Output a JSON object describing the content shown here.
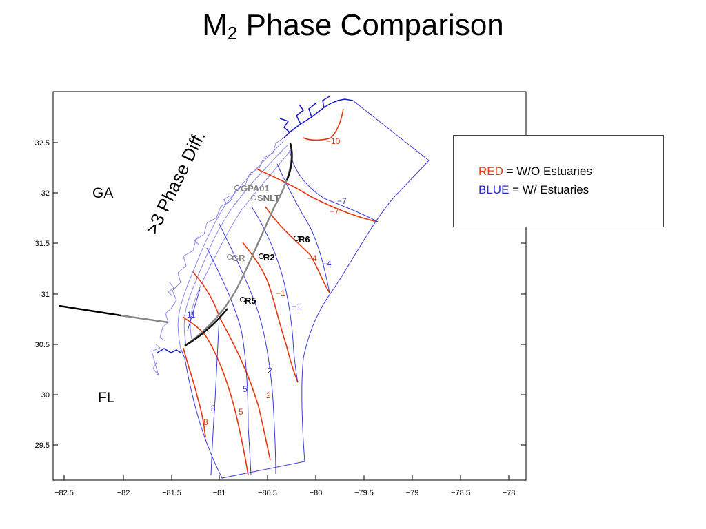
{
  "title": {
    "main": "M",
    "sub": "2",
    "rest": " Phase Comparison"
  },
  "legend": {
    "red_word": "RED",
    "red_rest": " = W/O Estuaries",
    "blue_word": "BLUE",
    "blue_rest": " = W/ Estuaries"
  },
  "states": {
    "ga": "GA",
    "fl": "FL"
  },
  "annotation": ">3 Phase Diff.",
  "axes": {
    "x_ticks": [
      "−82.5",
      "−82",
      "−81.5",
      "−81",
      "−80.5",
      "−80",
      "−79.5",
      "−79",
      "−78.5",
      "−78"
    ],
    "y_ticks": [
      "29.5",
      "30",
      "30.5",
      "31",
      "31.5",
      "32",
      "32.5"
    ]
  },
  "stations": [
    {
      "label": "GPA01",
      "style": "gray"
    },
    {
      "label": "SNLT",
      "style": "gray"
    },
    {
      "label": "R6",
      "style": "black"
    },
    {
      "label": "GR",
      "style": "gray"
    },
    {
      "label": "R2",
      "style": "black"
    },
    {
      "label": "R5",
      "style": "black"
    }
  ],
  "contours": {
    "red": [
      "−10",
      "−7",
      "−4",
      "−1",
      "2",
      "5",
      "8"
    ],
    "blue": [
      "−7",
      "−4",
      "−1",
      "2",
      "5",
      "8",
      "11"
    ]
  },
  "colors": {
    "red": "#e8350e",
    "blue": "#2c2ccc",
    "coast": "#7f7ff0",
    "gray": "#888888"
  }
}
